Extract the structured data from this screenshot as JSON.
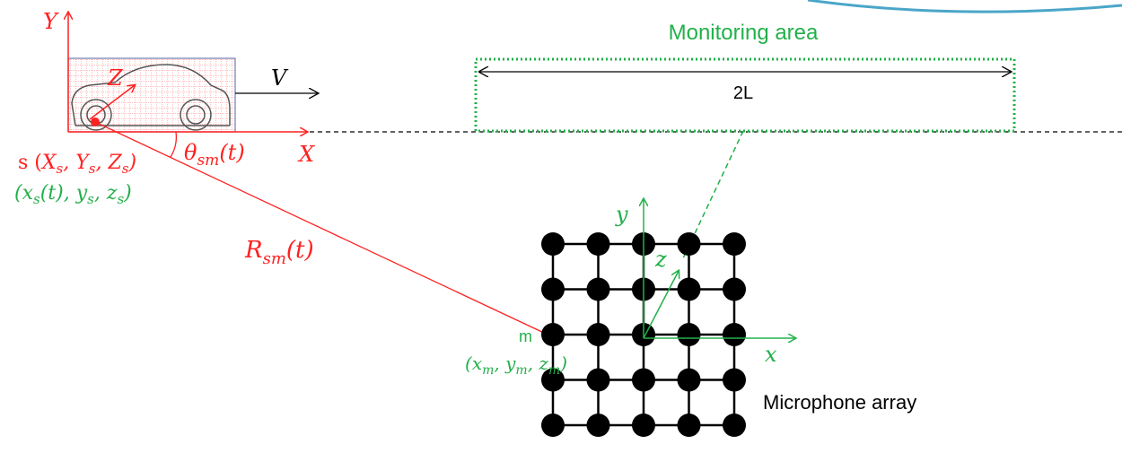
{
  "colors": {
    "red": "#ff2020",
    "green": "#22b04a",
    "black": "#000000",
    "car_box_border": "#6f7fb0",
    "accent_teal": "#4aa6c8"
  },
  "labels": {
    "Y_axis": "Y",
    "X_axis": "X",
    "Z_axis": "Z",
    "velocity": "V",
    "monitoring_area": "Monitoring area",
    "span": "2L",
    "source_global": "s (X",
    "source_global_sub_s": "s",
    "theta_main": "θ",
    "theta_sub": "sm",
    "theta_t": "(t)",
    "R_main": "R",
    "R_sub": "sm",
    "R_t": "(t)",
    "x_axis": "x",
    "y_axis": "y",
    "z_axis": "z",
    "mic_point": "m",
    "mic_array": "Microphone array"
  },
  "source_global_parts": [
    "s (",
    "X",
    "s",
    ", ",
    "Y",
    "s",
    ", ",
    "Z",
    "s",
    ")"
  ],
  "source_local_parts": [
    "(",
    "x",
    "s",
    "(t), ",
    "y",
    "s",
    ", ",
    "z",
    "s",
    ")"
  ],
  "mic_coord_parts": [
    "(",
    "x",
    "m",
    ", ",
    "y",
    "m",
    ", ",
    "z",
    "m",
    ")"
  ],
  "mic_grid": {
    "rows": 5,
    "cols": 5
  }
}
